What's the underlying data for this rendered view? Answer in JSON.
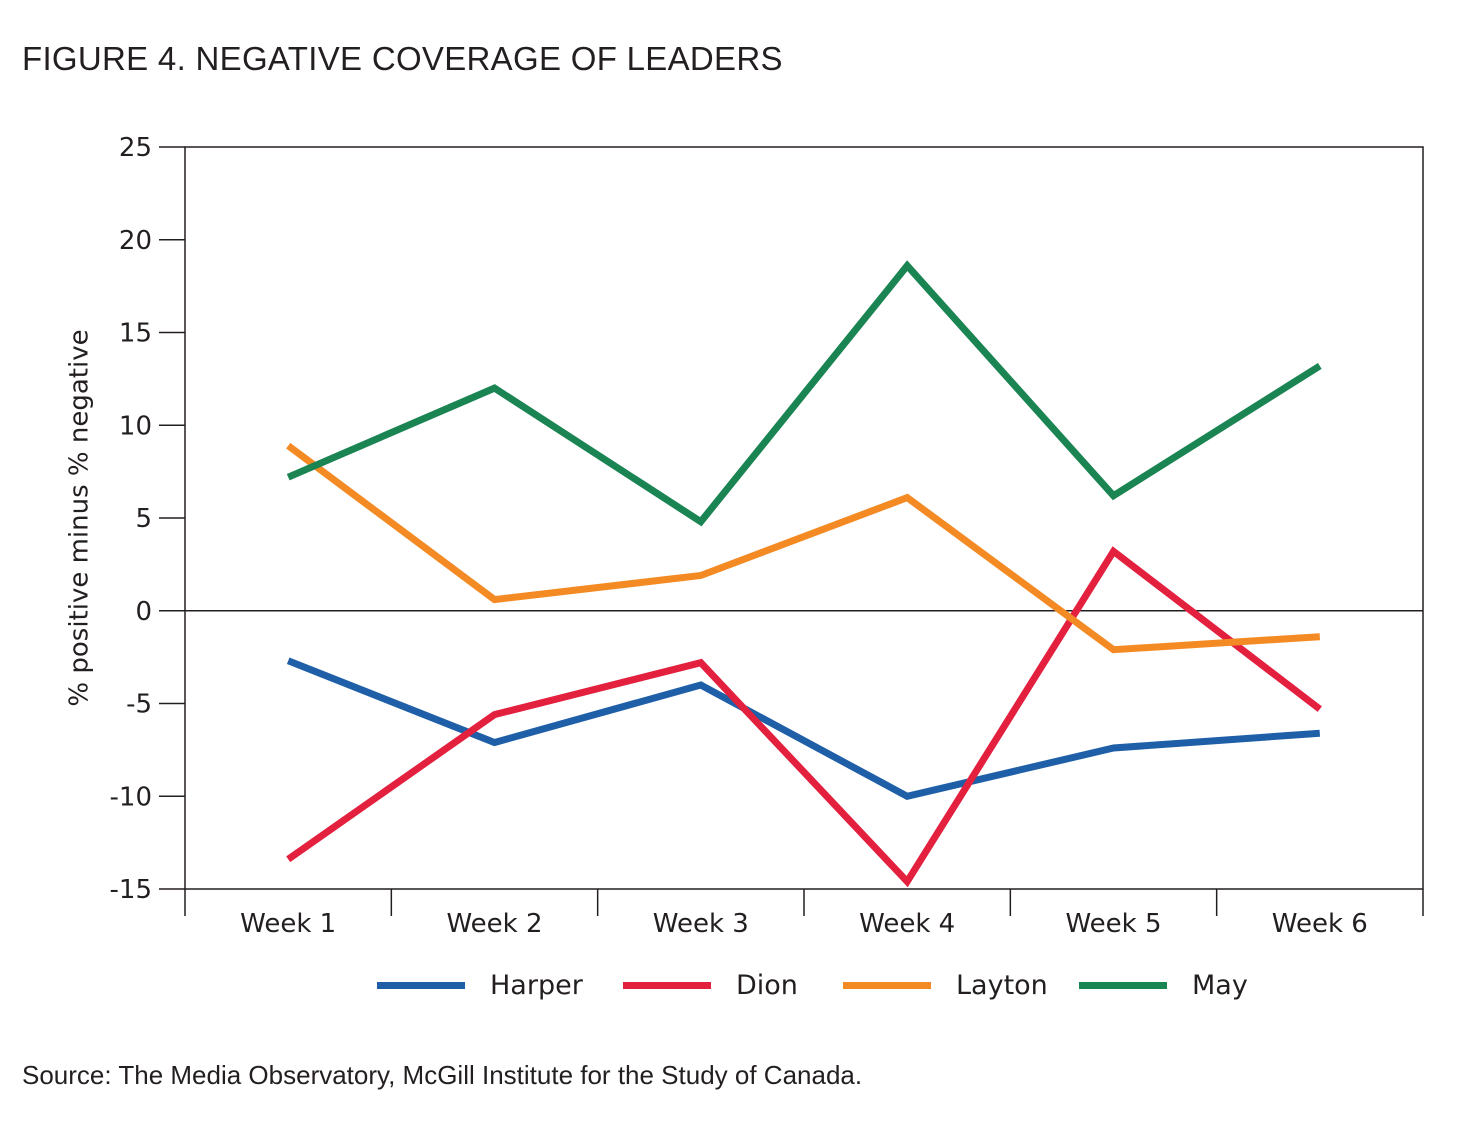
{
  "title": "FIGURE 4. NEGATIVE COVERAGE OF LEADERS",
  "source": "Source: The Media Observatory, McGill Institute for the Study of Canada.",
  "chart_data": {
    "type": "line",
    "ylabel": "% positive minus % negative",
    "xlabel": "",
    "categories": [
      "Week 1",
      "Week 2",
      "Week 3",
      "Week 4",
      "Week 5",
      "Week 6"
    ],
    "ylim": [
      -15,
      25
    ],
    "yticks": [
      25,
      20,
      15,
      10,
      5,
      0,
      -5,
      -10,
      -15
    ],
    "ytick_labels": [
      "25",
      "20",
      "15",
      "10",
      "5",
      "0",
      "-5",
      "-10",
      "-15"
    ],
    "grid": false,
    "zero_line": true,
    "legend_position": "bottom",
    "series": [
      {
        "name": "Harper",
        "color": "#1f5fa8",
        "values": [
          -2.7,
          -7.1,
          -4.0,
          -10.0,
          -7.4,
          -6.6
        ]
      },
      {
        "name": "Dion",
        "color": "#e3203e",
        "values": [
          -13.4,
          -5.6,
          -2.8,
          -14.6,
          3.2,
          -5.3
        ]
      },
      {
        "name": "Layton",
        "color": "#f48a24",
        "values": [
          8.9,
          0.6,
          1.9,
          6.1,
          -2.1,
          -1.4
        ]
      },
      {
        "name": "May",
        "color": "#1a8452",
        "values": [
          7.2,
          12.0,
          4.8,
          18.6,
          6.2,
          13.2
        ]
      }
    ]
  }
}
